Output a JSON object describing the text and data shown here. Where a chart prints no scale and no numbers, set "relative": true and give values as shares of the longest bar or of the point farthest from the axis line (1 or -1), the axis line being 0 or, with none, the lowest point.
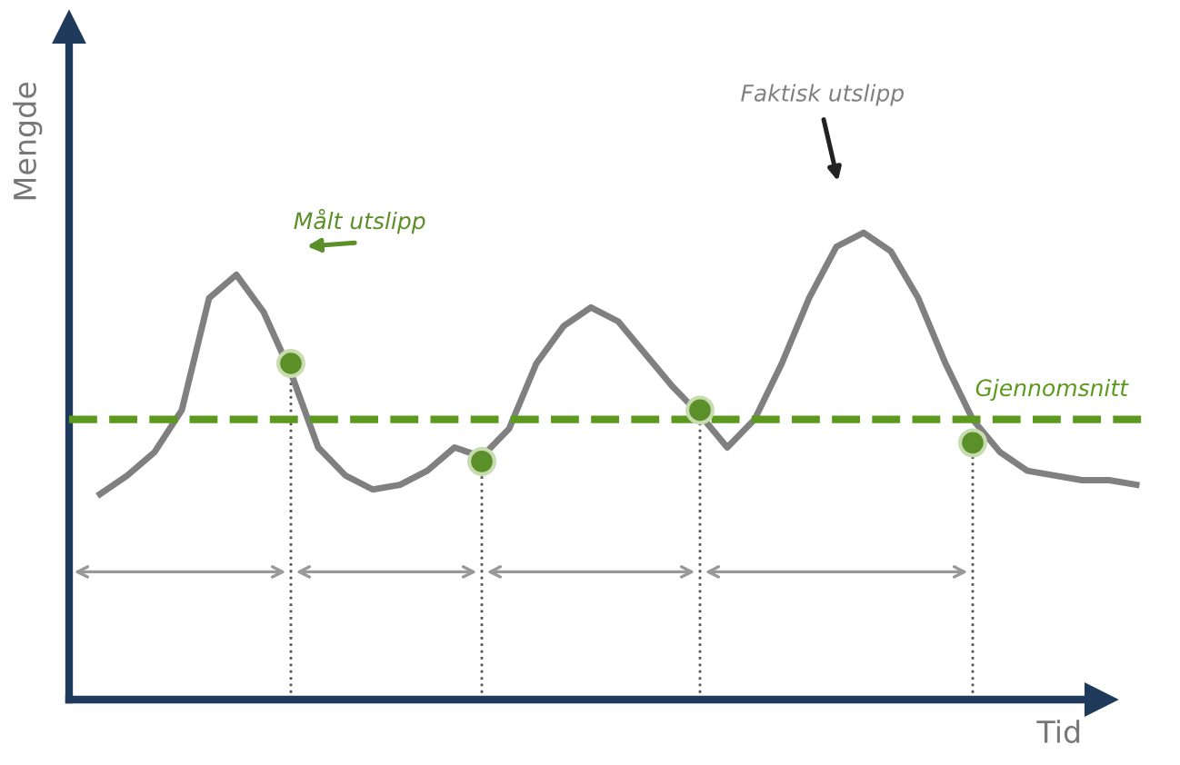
{
  "chart_data": {
    "type": "line",
    "relative": true,
    "xlabel": "Tid",
    "ylabel": "Mengde",
    "legend": false,
    "grid": false,
    "categories": [
      null,
      null,
      null,
      null,
      null,
      null,
      null,
      null,
      null,
      null,
      null,
      null,
      null,
      null,
      null,
      null,
      null,
      null,
      null,
      null,
      null,
      null,
      null,
      null,
      null,
      null,
      null,
      null,
      null,
      null,
      null,
      null,
      null,
      null,
      null,
      null,
      null,
      null,
      null
    ],
    "series": [
      {
        "name": "Faktisk utslipp",
        "color": "#808080",
        "marker": "none",
        "line_style": "solid",
        "values": [
          0.44,
          0.48,
          0.53,
          0.62,
          0.86,
          0.91,
          0.83,
          0.7,
          0.54,
          0.48,
          0.45,
          0.46,
          0.49,
          0.54,
          0.52,
          0.58,
          0.72,
          0.8,
          0.84,
          0.81,
          0.74,
          0.67,
          0.61,
          0.54,
          0.6,
          0.72,
          0.86,
          0.97,
          1.0,
          0.96,
          0.86,
          0.72,
          0.6,
          0.53,
          0.49,
          0.48,
          0.47,
          0.47,
          0.46
        ]
      },
      {
        "name": "Målt utslipp",
        "color": "#5b8f29",
        "marker": "circle",
        "values": [
          null,
          null,
          null,
          null,
          null,
          null,
          null,
          0.72,
          null,
          null,
          null,
          null,
          null,
          null,
          0.51,
          null,
          null,
          null,
          null,
          null,
          null,
          null,
          0.62,
          null,
          null,
          null,
          null,
          null,
          null,
          null,
          null,
          null,
          0.55,
          null,
          null,
          null,
          null,
          null,
          null
        ]
      }
    ],
    "ref_lines": [
      {
        "axis": "y",
        "value": 0.6,
        "label": "Gjennomsnitt",
        "color": "#5b9a1e",
        "line_style": "dashed"
      }
    ]
  }
}
